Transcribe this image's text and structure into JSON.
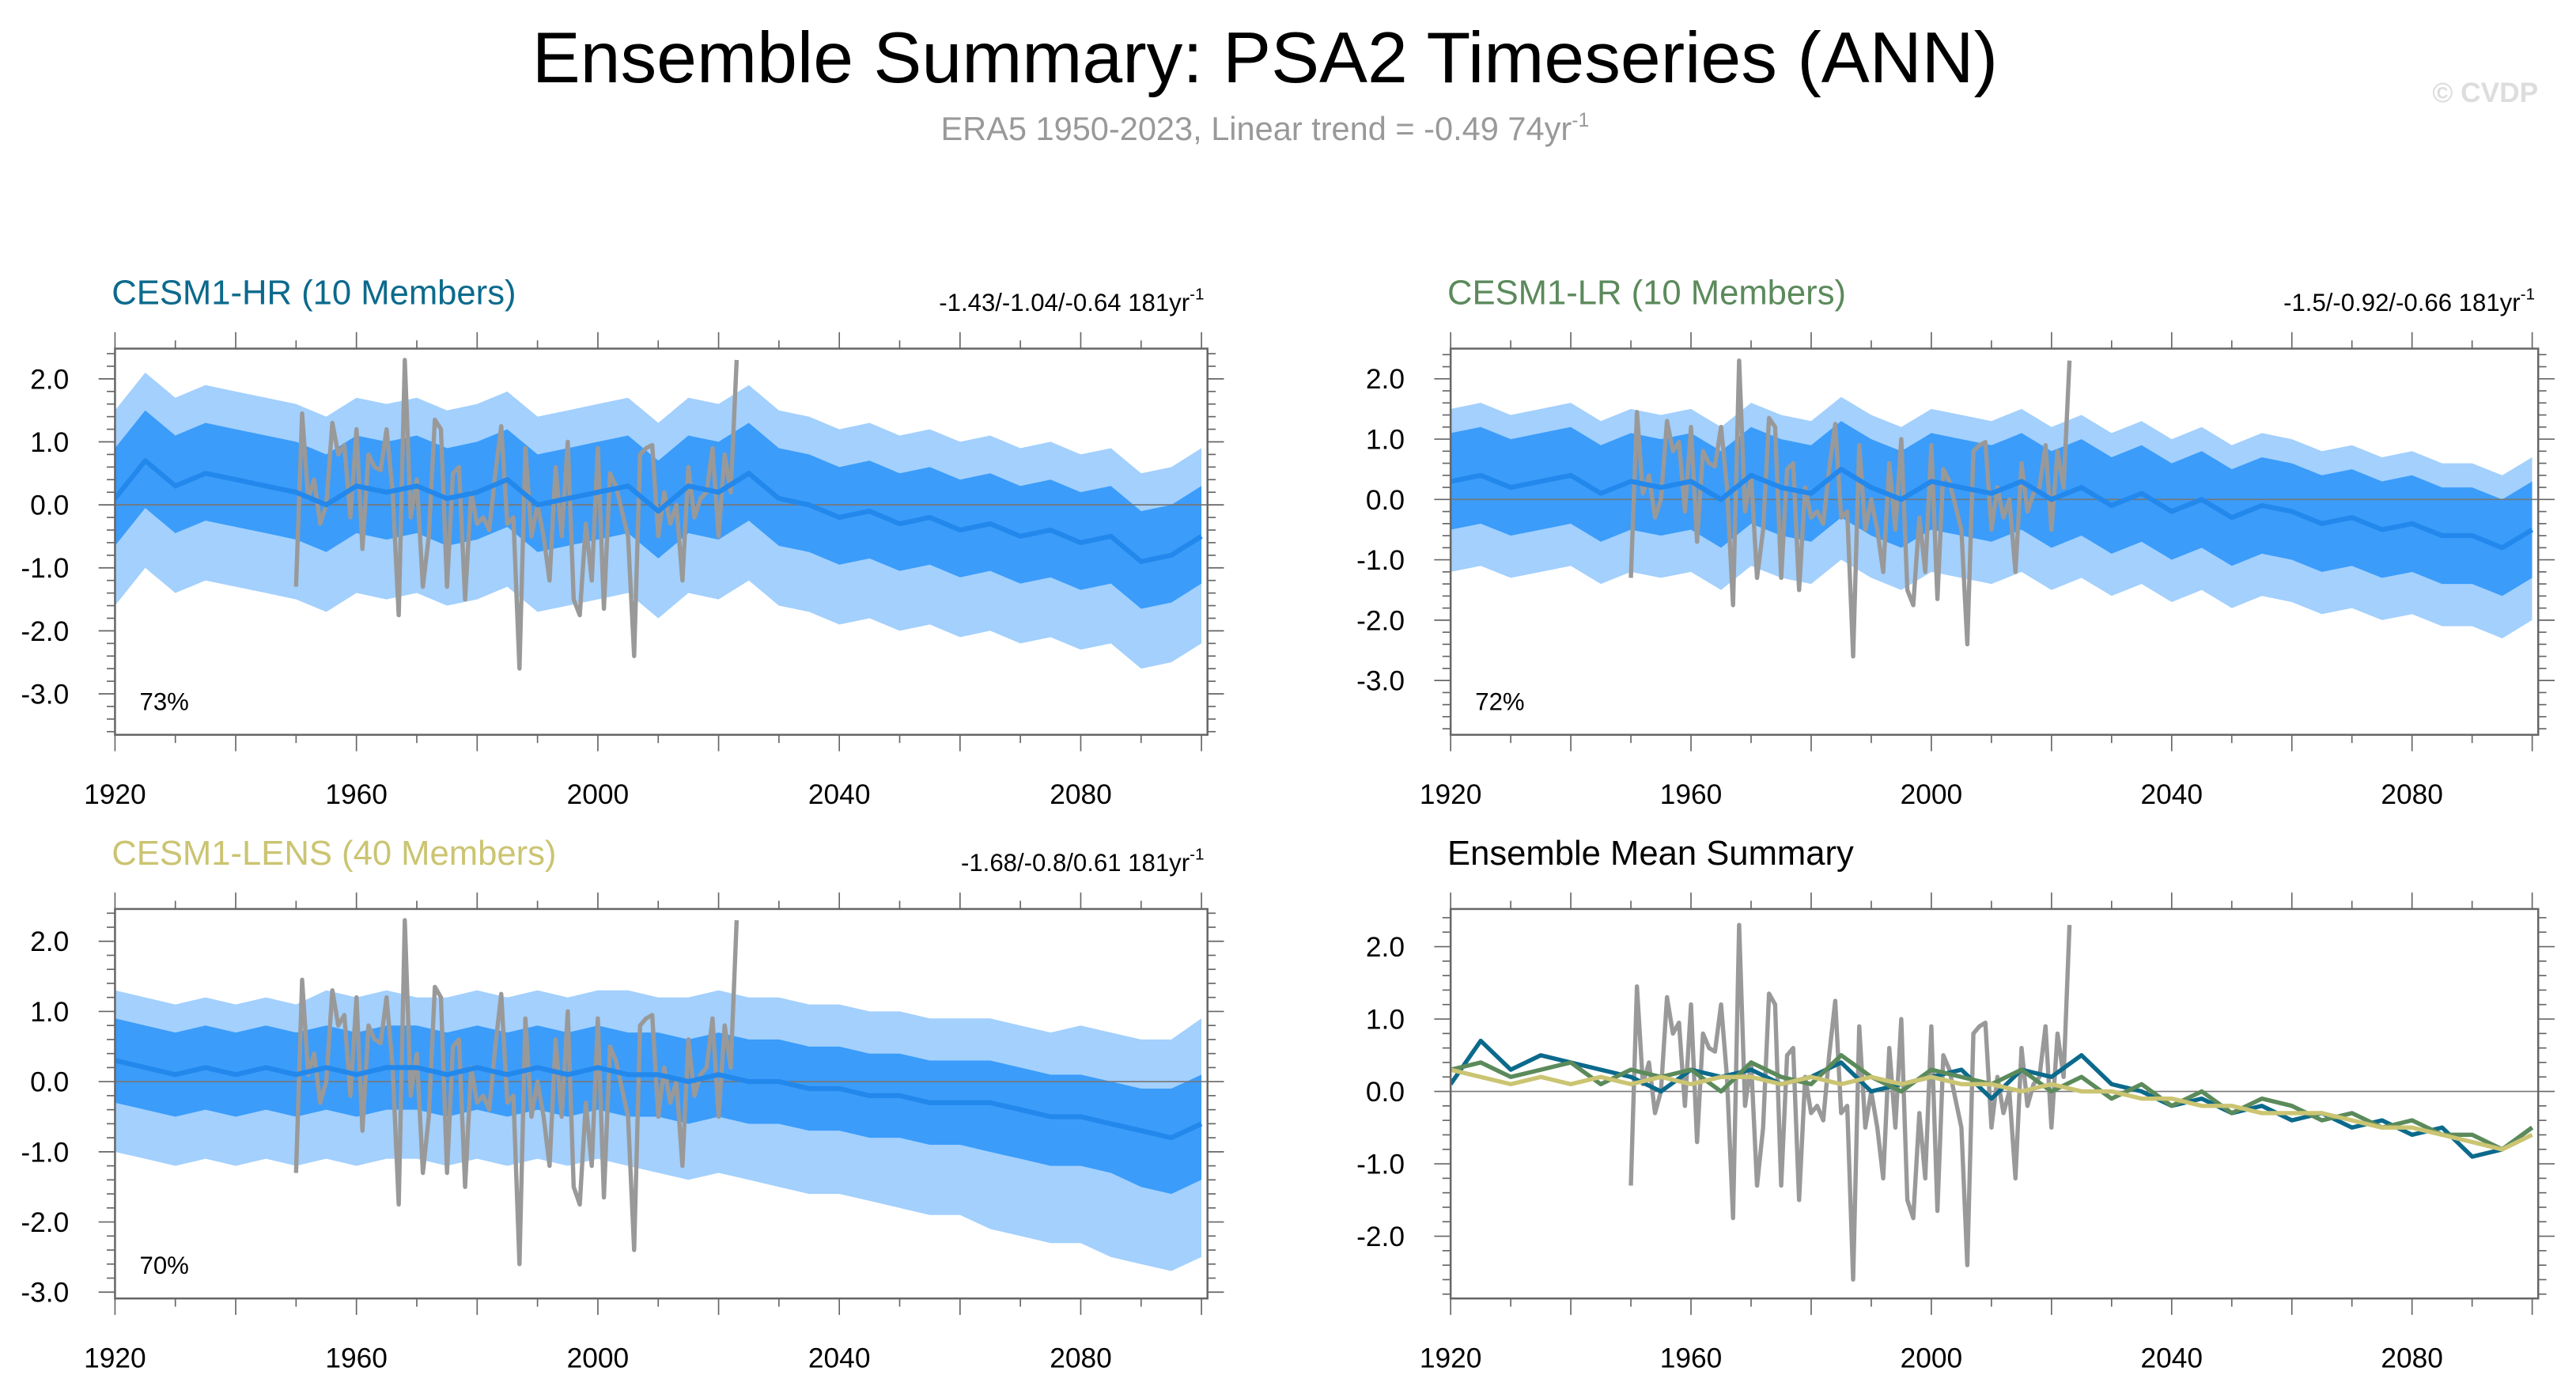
{
  "title": "Ensemble Summary: PSA2 Timeseries (ANN)",
  "subtitle": "ERA5 1950-2023, Linear trend = -0.49 74yr",
  "subtitle_sup": "-1",
  "watermark": "© CVDP",
  "colors": {
    "band_outer": "#a3d0fd",
    "band_inner": "#3b9cfa",
    "mean_line": "#2388ec",
    "obs_line": "#999999",
    "hr": "#0b6a8c",
    "lr": "#5b8a5b",
    "lens": "#cbc472"
  },
  "chart_data": [
    {
      "type": "area",
      "title": "CESM1-HR (10 Members)",
      "trend": "-1.43/-1.04/-0.64 181yr",
      "trend_sup": "-1",
      "percent": "73%",
      "xlim": [
        1920,
        2101
      ],
      "ylim": [
        -3.65,
        2.48
      ],
      "xticks": [
        "1920",
        "1960",
        "2000",
        "2040",
        "2080"
      ],
      "yticks": [
        "2.0",
        "1.0",
        "0.0",
        "-1.0",
        "-2.0",
        "-3.0"
      ],
      "band_years": [
        1920,
        1925,
        1930,
        1935,
        1940,
        1945,
        1950,
        1955,
        1960,
        1965,
        1970,
        1975,
        1980,
        1985,
        1990,
        1995,
        2000,
        2005,
        2010,
        2015,
        2020,
        2025,
        2030,
        2035,
        2040,
        2045,
        2050,
        2055,
        2060,
        2065,
        2070,
        2075,
        2080,
        2085,
        2090,
        2095,
        2100
      ],
      "mean": [
        0.1,
        0.7,
        0.3,
        0.5,
        0.4,
        0.3,
        0.2,
        0.0,
        0.3,
        0.2,
        0.3,
        0.1,
        0.2,
        0.4,
        0.0,
        0.1,
        0.2,
        0.3,
        -0.1,
        0.3,
        0.2,
        0.5,
        0.1,
        0.0,
        -0.2,
        -0.1,
        -0.3,
        -0.2,
        -0.4,
        -0.3,
        -0.5,
        -0.4,
        -0.6,
        -0.5,
        -0.9,
        -0.8,
        -0.5
      ],
      "inner_lo": [
        -0.65,
        -0.05,
        -0.45,
        -0.25,
        -0.35,
        -0.45,
        -0.55,
        -0.75,
        -0.45,
        -0.55,
        -0.45,
        -0.65,
        -0.55,
        -0.35,
        -0.75,
        -0.65,
        -0.55,
        -0.45,
        -0.85,
        -0.45,
        -0.55,
        -0.25,
        -0.65,
        -0.75,
        -0.95,
        -0.85,
        -1.05,
        -0.95,
        -1.15,
        -1.05,
        -1.25,
        -1.15,
        -1.35,
        -1.25,
        -1.65,
        -1.55,
        -1.25
      ],
      "inner_hi": [
        0.9,
        1.5,
        1.1,
        1.3,
        1.2,
        1.1,
        1.0,
        0.8,
        1.1,
        1.0,
        1.1,
        0.9,
        1.0,
        1.2,
        0.8,
        0.9,
        1.0,
        1.1,
        0.7,
        1.1,
        1.0,
        1.3,
        0.9,
        0.8,
        0.6,
        0.7,
        0.5,
        0.6,
        0.4,
        0.5,
        0.3,
        0.4,
        0.2,
        0.3,
        -0.1,
        0.0,
        0.3
      ],
      "outer_lo": [
        -1.6,
        -1.0,
        -1.4,
        -1.2,
        -1.3,
        -1.4,
        -1.5,
        -1.7,
        -1.4,
        -1.5,
        -1.4,
        -1.6,
        -1.5,
        -1.3,
        -1.7,
        -1.6,
        -1.5,
        -1.4,
        -1.8,
        -1.4,
        -1.5,
        -1.2,
        -1.6,
        -1.7,
        -1.9,
        -1.8,
        -2.0,
        -1.9,
        -2.1,
        -2.0,
        -2.2,
        -2.1,
        -2.3,
        -2.2,
        -2.6,
        -2.5,
        -2.2
      ],
      "outer_hi": [
        1.5,
        2.1,
        1.7,
        1.9,
        1.8,
        1.7,
        1.6,
        1.4,
        1.7,
        1.6,
        1.7,
        1.5,
        1.6,
        1.8,
        1.4,
        1.5,
        1.6,
        1.7,
        1.3,
        1.7,
        1.6,
        1.9,
        1.5,
        1.4,
        1.2,
        1.3,
        1.1,
        1.2,
        1.0,
        1.1,
        0.9,
        1.0,
        0.8,
        0.9,
        0.5,
        0.6,
        0.9
      ],
      "show_obs": true
    },
    {
      "type": "area",
      "title": "CESM1-LR (10 Members)",
      "trend": "-1.5/-0.92/-0.66 181yr",
      "trend_sup": "-1",
      "percent": "72%",
      "xlim": [
        1920,
        2101
      ],
      "ylim": [
        -3.9,
        2.5
      ],
      "xticks": [
        "1920",
        "1960",
        "2000",
        "2040",
        "2080"
      ],
      "yticks": [
        "2.0",
        "1.0",
        "0.0",
        "-1.0",
        "-2.0",
        "-3.0"
      ],
      "band_years": [
        1920,
        1925,
        1930,
        1935,
        1940,
        1945,
        1950,
        1955,
        1960,
        1965,
        1970,
        1975,
        1980,
        1985,
        1990,
        1995,
        2000,
        2005,
        2010,
        2015,
        2020,
        2025,
        2030,
        2035,
        2040,
        2045,
        2050,
        2055,
        2060,
        2065,
        2070,
        2075,
        2080,
        2085,
        2090,
        2095,
        2100
      ],
      "mean": [
        0.3,
        0.4,
        0.2,
        0.3,
        0.4,
        0.1,
        0.3,
        0.2,
        0.3,
        0.0,
        0.4,
        0.2,
        0.1,
        0.5,
        0.2,
        0.0,
        0.3,
        0.2,
        0.1,
        0.3,
        0.0,
        0.2,
        -0.1,
        0.1,
        -0.2,
        0.0,
        -0.3,
        -0.1,
        -0.2,
        -0.4,
        -0.3,
        -0.5,
        -0.4,
        -0.6,
        -0.6,
        -0.8,
        -0.5
      ],
      "inner_lo": [
        -0.5,
        -0.4,
        -0.6,
        -0.5,
        -0.4,
        -0.7,
        -0.5,
        -0.6,
        -0.5,
        -0.8,
        -0.4,
        -0.6,
        -0.7,
        -0.3,
        -0.6,
        -0.8,
        -0.5,
        -0.6,
        -0.7,
        -0.5,
        -0.8,
        -0.6,
        -0.9,
        -0.7,
        -1.0,
        -0.8,
        -1.1,
        -0.9,
        -1.0,
        -1.2,
        -1.1,
        -1.3,
        -1.2,
        -1.4,
        -1.4,
        -1.6,
        -1.3
      ],
      "inner_hi": [
        1.1,
        1.2,
        1.0,
        1.1,
        1.2,
        0.9,
        1.1,
        1.0,
        1.1,
        0.8,
        1.2,
        1.0,
        0.9,
        1.3,
        1.0,
        0.8,
        1.1,
        1.0,
        0.9,
        1.1,
        0.8,
        1.0,
        0.7,
        0.9,
        0.6,
        0.8,
        0.5,
        0.7,
        0.6,
        0.4,
        0.5,
        0.3,
        0.4,
        0.2,
        0.2,
        0.0,
        0.3
      ],
      "outer_lo": [
        -1.2,
        -1.1,
        -1.3,
        -1.2,
        -1.1,
        -1.4,
        -1.2,
        -1.3,
        -1.2,
        -1.5,
        -1.1,
        -1.3,
        -1.4,
        -1.0,
        -1.3,
        -1.5,
        -1.2,
        -1.3,
        -1.4,
        -1.2,
        -1.5,
        -1.3,
        -1.6,
        -1.4,
        -1.7,
        -1.5,
        -1.8,
        -1.6,
        -1.7,
        -1.9,
        -1.8,
        -2.0,
        -1.9,
        -2.1,
        -2.1,
        -2.3,
        -2.0
      ],
      "outer_hi": [
        1.5,
        1.6,
        1.4,
        1.5,
        1.6,
        1.3,
        1.5,
        1.4,
        1.5,
        1.2,
        1.6,
        1.4,
        1.3,
        1.7,
        1.4,
        1.2,
        1.5,
        1.4,
        1.3,
        1.5,
        1.2,
        1.4,
        1.1,
        1.3,
        1.0,
        1.2,
        0.9,
        1.1,
        1.0,
        0.8,
        0.9,
        0.7,
        0.8,
        0.6,
        0.6,
        0.4,
        0.7
      ],
      "show_obs": true
    },
    {
      "type": "area",
      "title": "CESM1-LENS (40 Members)",
      "trend": "-1.68/-0.8/0.61 181yr",
      "trend_sup": "-1",
      "percent": "70%",
      "xlim": [
        1920,
        2101
      ],
      "ylim": [
        -3.09,
        2.46
      ],
      "xticks": [
        "1920",
        "1960",
        "2000",
        "2040",
        "2080"
      ],
      "yticks": [
        "2.0",
        "1.0",
        "0.0",
        "-1.0",
        "-2.0",
        "-3.0"
      ],
      "band_years": [
        1920,
        1925,
        1930,
        1935,
        1940,
        1945,
        1950,
        1955,
        1960,
        1965,
        1970,
        1975,
        1980,
        1985,
        1990,
        1995,
        2000,
        2005,
        2010,
        2015,
        2020,
        2025,
        2030,
        2035,
        2040,
        2045,
        2050,
        2055,
        2060,
        2065,
        2070,
        2075,
        2080,
        2085,
        2090,
        2095,
        2100
      ],
      "mean": [
        0.3,
        0.2,
        0.1,
        0.2,
        0.1,
        0.2,
        0.1,
        0.2,
        0.1,
        0.2,
        0.2,
        0.1,
        0.2,
        0.1,
        0.2,
        0.1,
        0.2,
        0.1,
        0.1,
        0.0,
        0.1,
        0.0,
        0.0,
        -0.1,
        -0.1,
        -0.2,
        -0.2,
        -0.3,
        -0.3,
        -0.3,
        -0.4,
        -0.5,
        -0.5,
        -0.6,
        -0.7,
        -0.8,
        -0.6
      ],
      "inner_lo": [
        -0.3,
        -0.4,
        -0.5,
        -0.4,
        -0.5,
        -0.4,
        -0.5,
        -0.4,
        -0.5,
        -0.4,
        -0.4,
        -0.5,
        -0.4,
        -0.5,
        -0.4,
        -0.5,
        -0.4,
        -0.5,
        -0.5,
        -0.6,
        -0.5,
        -0.6,
        -0.6,
        -0.7,
        -0.7,
        -0.8,
        -0.8,
        -0.9,
        -0.9,
        -1.0,
        -1.1,
        -1.2,
        -1.2,
        -1.3,
        -1.5,
        -1.6,
        -1.4
      ],
      "inner_hi": [
        0.9,
        0.8,
        0.7,
        0.8,
        0.7,
        0.8,
        0.7,
        0.8,
        0.7,
        0.8,
        0.8,
        0.7,
        0.8,
        0.7,
        0.8,
        0.7,
        0.8,
        0.7,
        0.7,
        0.6,
        0.7,
        0.6,
        0.6,
        0.5,
        0.5,
        0.4,
        0.4,
        0.3,
        0.3,
        0.3,
        0.2,
        0.1,
        0.1,
        0.0,
        -0.1,
        -0.1,
        0.1
      ],
      "outer_lo": [
        -1.0,
        -1.1,
        -1.2,
        -1.1,
        -1.2,
        -1.1,
        -1.2,
        -1.1,
        -1.2,
        -1.1,
        -1.1,
        -1.2,
        -1.1,
        -1.2,
        -1.1,
        -1.2,
        -1.1,
        -1.2,
        -1.3,
        -1.4,
        -1.3,
        -1.4,
        -1.5,
        -1.6,
        -1.6,
        -1.7,
        -1.8,
        -1.9,
        -1.9,
        -2.1,
        -2.2,
        -2.3,
        -2.3,
        -2.5,
        -2.6,
        -2.7,
        -2.5
      ],
      "outer_hi": [
        1.3,
        1.2,
        1.1,
        1.2,
        1.1,
        1.2,
        1.1,
        1.3,
        1.2,
        1.3,
        1.2,
        1.2,
        1.3,
        1.2,
        1.3,
        1.2,
        1.3,
        1.3,
        1.2,
        1.2,
        1.3,
        1.2,
        1.2,
        1.1,
        1.1,
        1.0,
        1.0,
        0.9,
        0.9,
        0.9,
        0.8,
        0.7,
        0.8,
        0.7,
        0.6,
        0.6,
        0.9
      ],
      "show_obs": true
    },
    {
      "type": "line",
      "title": "Ensemble Mean Summary",
      "xlim": [
        1920,
        2101
      ],
      "ylim": [
        -2.86,
        2.52
      ],
      "xticks": [
        "1920",
        "1960",
        "2000",
        "2040",
        "2080"
      ],
      "yticks": [
        "2.0",
        "1.0",
        "0.0",
        "-1.0",
        "-2.0"
      ],
      "series_years": [
        1920,
        1925,
        1930,
        1935,
        1940,
        1945,
        1950,
        1955,
        1960,
        1965,
        1970,
        1975,
        1980,
        1985,
        1990,
        1995,
        2000,
        2005,
        2010,
        2015,
        2020,
        2025,
        2030,
        2035,
        2040,
        2045,
        2050,
        2055,
        2060,
        2065,
        2070,
        2075,
        2080,
        2085,
        2090,
        2095,
        2100
      ],
      "series": [
        {
          "color_key": "hr",
          "values": [
            0.1,
            0.7,
            0.3,
            0.5,
            0.4,
            0.3,
            0.2,
            0.0,
            0.3,
            0.2,
            0.3,
            0.1,
            0.2,
            0.4,
            0.0,
            0.1,
            0.2,
            0.3,
            -0.1,
            0.3,
            0.2,
            0.5,
            0.1,
            0.0,
            -0.2,
            -0.1,
            -0.3,
            -0.2,
            -0.4,
            -0.3,
            -0.5,
            -0.4,
            -0.6,
            -0.5,
            -0.9,
            -0.8,
            -0.5
          ]
        },
        {
          "color_key": "lr",
          "values": [
            0.3,
            0.4,
            0.2,
            0.3,
            0.4,
            0.1,
            0.3,
            0.2,
            0.3,
            0.0,
            0.4,
            0.2,
            0.1,
            0.5,
            0.2,
            0.0,
            0.3,
            0.2,
            0.1,
            0.3,
            0.0,
            0.2,
            -0.1,
            0.1,
            -0.2,
            0.0,
            -0.3,
            -0.1,
            -0.2,
            -0.4,
            -0.3,
            -0.5,
            -0.4,
            -0.6,
            -0.6,
            -0.8,
            -0.5
          ]
        },
        {
          "color_key": "lens",
          "values": [
            0.3,
            0.2,
            0.1,
            0.2,
            0.1,
            0.2,
            0.1,
            0.2,
            0.1,
            0.2,
            0.2,
            0.1,
            0.2,
            0.1,
            0.2,
            0.1,
            0.2,
            0.1,
            0.1,
            0.0,
            0.1,
            0.0,
            0.0,
            -0.1,
            -0.1,
            -0.2,
            -0.2,
            -0.3,
            -0.3,
            -0.3,
            -0.4,
            -0.5,
            -0.5,
            -0.6,
            -0.7,
            -0.8,
            -0.6
          ]
        }
      ],
      "show_obs": true
    }
  ],
  "obs": {
    "years_start": 1950,
    "values": [
      -1.3,
      1.45,
      0.1,
      0.4,
      -0.3,
      0.0,
      1.3,
      0.8,
      0.95,
      -0.2,
      1.2,
      -0.7,
      0.8,
      0.6,
      0.55,
      1.2,
      0.2,
      -1.75,
      2.3,
      -0.2,
      0.4,
      -1.3,
      -0.5,
      1.35,
      1.2,
      -1.3,
      0.5,
      0.6,
      -1.5,
      0.2,
      -0.3,
      -0.2,
      -0.4,
      0.5,
      1.25,
      -0.3,
      -0.2,
      -2.6,
      0.9,
      -0.5,
      0.0,
      -0.5,
      -1.2,
      0.6,
      -0.5,
      1.0,
      -1.5,
      -1.75,
      -0.3,
      -1.2,
      0.9,
      -1.65,
      0.5,
      0.3,
      -0.1,
      -0.5,
      -2.4,
      0.8,
      0.9,
      0.95,
      -0.5,
      0.2,
      -0.3,
      0.0,
      -1.2,
      0.6,
      -0.2,
      0.1,
      0.2,
      0.9,
      -0.5,
      0.8,
      0.2,
      2.3
    ]
  }
}
